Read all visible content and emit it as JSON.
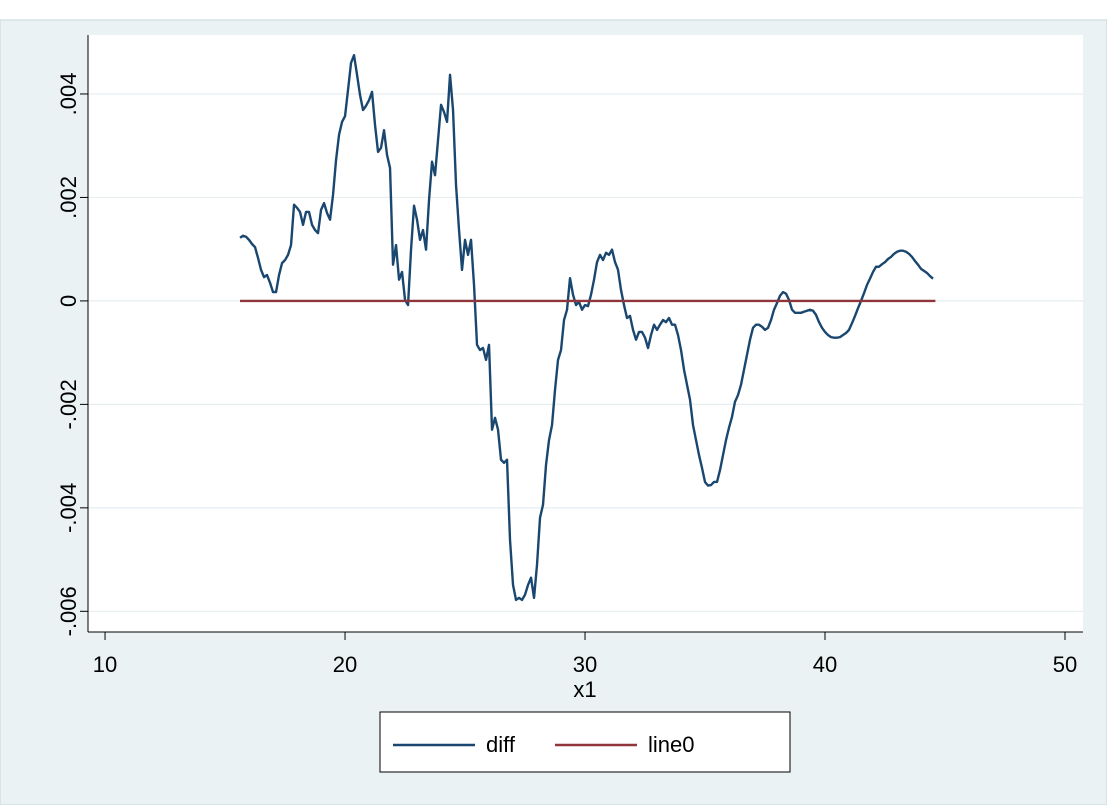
{
  "chart_data": {
    "type": "line",
    "xlabel": "x1",
    "xlim": [
      9.29,
      50.75
    ],
    "xticks": [
      10,
      20,
      30,
      40,
      50
    ],
    "ylim": [
      -0.0064,
      0.00514
    ],
    "yticks": [
      {
        "value": 0.004,
        "label": ".004"
      },
      {
        "value": 0.002,
        "label": ".002"
      },
      0,
      {
        "value": -0.002,
        "label": "-.002"
      },
      {
        "value": -0.004,
        "label": "-.004"
      },
      {
        "value": -0.006,
        "label": "-.006"
      }
    ],
    "grid": true,
    "legend": "bottom",
    "series": [
      {
        "name": "diff",
        "color": "#1a476f",
        "x": [
          15.625,
          15.75,
          15.875,
          16,
          16.125,
          16.25,
          16.375,
          16.5,
          16.625,
          16.75,
          16.875,
          17,
          17.125,
          17.25,
          17.375,
          17.5,
          17.625,
          17.75,
          17.875,
          18,
          18.125,
          18.25,
          18.375,
          18.5,
          18.625,
          18.75,
          18.875,
          19,
          19.125,
          19.25,
          19.375,
          19.5,
          19.625,
          19.75,
          19.875,
          20,
          20.125,
          20.25,
          20.375,
          20.5,
          20.625,
          20.75,
          20.875,
          21,
          21.125,
          21.25,
          21.375,
          21.5,
          21.625,
          21.75,
          21.875,
          22,
          22.125,
          22.25,
          22.375,
          22.5,
          22.625,
          22.75,
          22.875,
          23,
          23.125,
          23.25,
          23.375,
          23.5,
          23.625,
          23.75,
          23.875,
          24,
          24.125,
          24.25,
          24.375,
          24.5,
          24.625,
          24.75,
          24.875,
          25,
          25.125,
          25.25,
          25.375,
          25.5,
          25.625,
          25.75,
          25.875,
          26,
          26.125,
          26.25,
          26.375,
          26.5,
          26.625,
          26.75,
          26.875,
          27,
          27.125,
          27.25,
          27.375,
          27.5,
          27.625,
          27.75,
          27.875,
          28,
          28.125,
          28.25,
          28.375,
          28.5,
          28.625,
          28.75,
          28.875,
          29,
          29.125,
          29.25,
          29.375,
          29.5,
          29.625,
          29.75,
          29.875,
          30,
          30.125,
          30.25,
          30.375,
          30.5,
          30.625,
          30.75,
          30.875,
          31,
          31.125,
          31.25,
          31.375,
          31.5,
          31.625,
          31.75,
          31.875,
          32,
          32.125,
          32.25,
          32.375,
          32.5,
          32.625,
          32.75,
          32.875,
          33,
          33.125,
          33.25,
          33.375,
          33.5,
          33.625,
          33.75,
          33.875,
          34,
          34.125,
          34.25,
          34.375,
          34.5,
          34.625,
          34.75,
          34.875,
          35,
          35.125,
          35.25,
          35.375,
          35.5,
          35.625,
          35.75,
          35.875,
          36,
          36.125,
          36.25,
          36.375,
          36.5,
          36.625,
          36.75,
          36.875,
          37,
          37.125,
          37.25,
          37.375,
          37.5,
          37.625,
          37.75,
          37.875,
          38,
          38.125,
          38.25,
          38.375,
          38.5,
          38.625,
          38.75,
          38.875,
          39,
          39.125,
          39.25,
          39.375,
          39.5,
          39.625,
          39.75,
          39.875,
          40,
          40.125,
          40.25,
          40.375,
          40.5,
          40.625,
          40.75,
          40.875,
          41,
          41.125,
          41.25,
          41.375,
          41.5,
          41.625,
          41.75,
          41.875,
          42,
          42.125,
          42.25,
          42.375,
          42.5,
          42.625,
          42.75,
          42.875,
          43,
          43.125,
          43.25,
          43.375,
          43.5,
          43.625,
          43.75,
          43.875,
          44,
          44.125,
          44.25,
          44.375,
          44.5
        ],
        "values": [
          0.00122,
          0.00126,
          0.00124,
          0.00118,
          0.0011,
          0.00104,
          0.00083,
          0.0006,
          0.00046,
          0.0005,
          0.00035,
          0.00017,
          0.00017,
          0.0005,
          0.00073,
          0.00079,
          0.00089,
          0.00108,
          0.00186,
          0.0018,
          0.00172,
          0.00147,
          0.00172,
          0.00172,
          0.00147,
          0.00137,
          0.00131,
          0.00176,
          0.00189,
          0.0017,
          0.00157,
          0.00205,
          0.00272,
          0.00321,
          0.00346,
          0.00357,
          0.00408,
          0.0046,
          0.00475,
          0.00437,
          0.00398,
          0.00369,
          0.00377,
          0.00388,
          0.00404,
          0.0034,
          0.00288,
          0.00296,
          0.0033,
          0.00282,
          0.00257,
          0.0007,
          0.00108,
          0.00041,
          0.00056,
          2e-05,
          -8e-05,
          0.00099,
          0.00184,
          0.00157,
          0.00118,
          0.00137,
          0.00099,
          0.00195,
          0.00269,
          0.00243,
          0.00311,
          0.00379,
          0.00365,
          0.00346,
          0.00437,
          0.00369,
          0.00224,
          0.00137,
          0.0006,
          0.00118,
          0.00089,
          0.00118,
          0.00031,
          -0.00085,
          -0.00095,
          -0.00091,
          -0.00114,
          -0.00085,
          -0.00249,
          -0.00226,
          -0.00249,
          -0.00307,
          -0.00313,
          -0.00307,
          -0.00462,
          -0.00549,
          -0.00578,
          -0.00574,
          -0.00578,
          -0.00568,
          -0.00549,
          -0.00535,
          -0.00574,
          -0.0051,
          -0.00419,
          -0.00394,
          -0.00317,
          -0.00269,
          -0.0024,
          -0.00172,
          -0.00114,
          -0.00095,
          -0.00037,
          -0.00017,
          0.00044,
          0.00012,
          -8e-05,
          -2e-05,
          -0.00017,
          -8e-05,
          -0.0001,
          0.00012,
          0.00041,
          0.00075,
          0.00089,
          0.00079,
          0.00093,
          0.00089,
          0.00099,
          0.00075,
          0.0006,
          0.00021,
          -8e-05,
          -0.00033,
          -0.00029,
          -0.00056,
          -0.00075,
          -0.0006,
          -0.0006,
          -0.00071,
          -0.00091,
          -0.00066,
          -0.00046,
          -0.00056,
          -0.00046,
          -0.00037,
          -0.00041,
          -0.00033,
          -0.00046,
          -0.00046,
          -0.00066,
          -0.00095,
          -0.00133,
          -0.00162,
          -0.00191,
          -0.0024,
          -0.00269,
          -0.00298,
          -0.00323,
          -0.0035,
          -0.00357,
          -0.00356,
          -0.0035,
          -0.0035,
          -0.00327,
          -0.00298,
          -0.00269,
          -0.00245,
          -0.00224,
          -0.00195,
          -0.00182,
          -0.00162,
          -0.00133,
          -0.00104,
          -0.00075,
          -0.00052,
          -0.00046,
          -0.00046,
          -0.0005,
          -0.00056,
          -0.00052,
          -0.00037,
          -0.00017,
          -4e-05,
          0.0001,
          0.00017,
          0.00014,
          2e-05,
          -0.00017,
          -0.00023,
          -0.00023,
          -0.00023,
          -0.00021,
          -0.00019,
          -0.00017,
          -0.00019,
          -0.00027,
          -0.00041,
          -0.00052,
          -0.0006,
          -0.00066,
          -0.0007,
          -0.00071,
          -0.00071,
          -0.0007,
          -0.00066,
          -0.00062,
          -0.00056,
          -0.00043,
          -0.00029,
          -0.00014,
          0,
          0.00015,
          0.00031,
          0.00043,
          0.00056,
          0.00066,
          0.00066,
          0.00071,
          0.00075,
          0.00081,
          0.00085,
          0.00091,
          0.00095,
          0.00097,
          0.00097,
          0.00095,
          0.00091,
          0.00085,
          0.00077,
          0.0007,
          0.00062,
          0.00058,
          0.00054,
          0.00048,
          0.00043
        ]
      },
      {
        "name": "line0",
        "color": "#90353b",
        "x": [
          15.625,
          44.6
        ],
        "values": [
          0,
          0
        ]
      }
    ]
  }
}
